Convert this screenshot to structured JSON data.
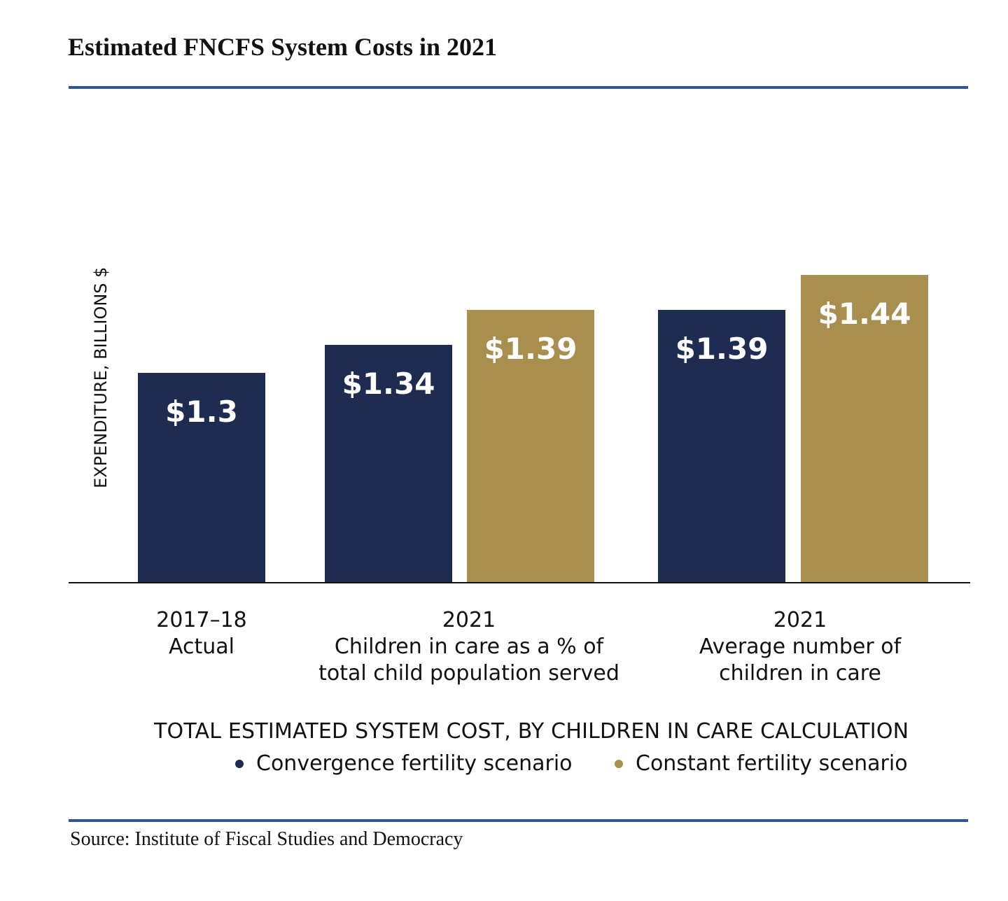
{
  "colors": {
    "rule": "#2b5797",
    "convergence": "#1f2c52",
    "constant": "#a98f4e",
    "axis": "#111111"
  },
  "title": "Estimated FNCFS System Costs in 2021",
  "source": "Source: Institute of Fiscal Studies and Democracy",
  "chart_data": {
    "type": "bar",
    "title": "Estimated FNCFS System Costs in 2021",
    "ylabel": "EXPENDITURE, BILLIONS $",
    "xlabel": "TOTAL ESTIMATED SYSTEM COST, BY CHILDREN IN CARE CALCULATION",
    "ylim": [
      0,
      1.5
    ],
    "grid": false,
    "legend_placement": "bottom",
    "categories": [
      [
        "2017–18",
        "Actual"
      ],
      [
        "2021",
        "Children in care as a % of",
        "total child population served"
      ],
      [
        "2021",
        "Average number of",
        "children in care"
      ]
    ],
    "series": [
      {
        "name": "Convergence fertility scenario",
        "color": "#1f2c52",
        "values": [
          1.3,
          1.34,
          1.39
        ],
        "labels": [
          "$1.3",
          "$1.34",
          "$1.39"
        ]
      },
      {
        "name": "Constant fertility scenario",
        "color": "#a98f4e",
        "values": [
          null,
          1.39,
          1.44
        ],
        "labels": [
          null,
          "$1.39",
          "$1.44"
        ]
      }
    ]
  }
}
